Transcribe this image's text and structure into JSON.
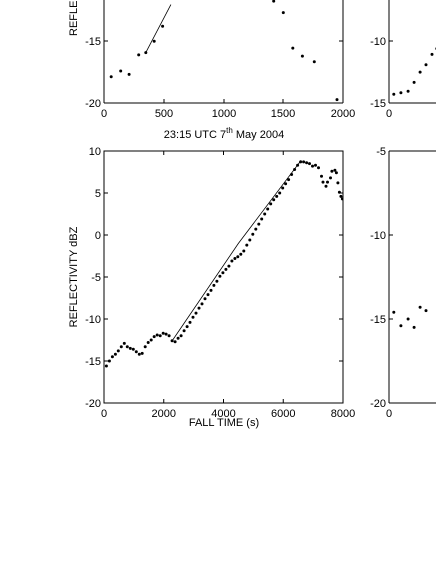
{
  "chart_data": [
    {
      "type": "scatter",
      "panel": "top-left",
      "xlabel": "",
      "ylabel": "REFLECTIVITY dBZ",
      "ylabel_visible": "REFLE",
      "xlim": [
        0,
        2000
      ],
      "ylim": [
        -20,
        -11
      ],
      "xticks": [
        "0",
        "500",
        "1000",
        "1500",
        "2000"
      ],
      "yticks": [
        "-15",
        "-20"
      ],
      "series": [
        {
          "name": "",
          "points": [
            [
              60,
              -17.7
            ],
            [
              140,
              -17.2
            ],
            [
              210,
              -17.5
            ],
            [
              290,
              -15.8
            ],
            [
              350,
              -15.6
            ],
            [
              420,
              -14.6
            ],
            [
              490,
              -13.3
            ]
          ]
        },
        {
          "name": "",
          "points": [
            [
              1420,
              -11.1
            ],
            [
              1500,
              -12.1
            ],
            [
              1580,
              -15.2
            ],
            [
              1660,
              -15.9
            ],
            [
              1760,
              -16.4
            ],
            [
              1950,
              -19.7
            ]
          ]
        }
      ],
      "fit_line": [
        [
          350,
          -15.6
        ],
        [
          560,
          -11.4
        ]
      ]
    },
    {
      "type": "scatter",
      "panel": "top-right",
      "xlim": [
        0,
        2000
      ],
      "ylim": [
        -15,
        -8
      ],
      "xticks": [
        "0"
      ],
      "yticks": [
        "-10",
        "-15"
      ],
      "series": [
        {
          "name": "",
          "points": [
            [
              40,
              -14.4
            ],
            [
              100,
              -14.3
            ],
            [
              160,
              -14.2
            ],
            [
              210,
              -13.6
            ],
            [
              260,
              -12.9
            ],
            [
              310,
              -12.4
            ],
            [
              360,
              -11.7
            ],
            [
              400,
              -11.3
            ]
          ]
        }
      ]
    },
    {
      "type": "scatter",
      "panel": "bottom-left",
      "title": "23:15 UTC 7",
      "title_sup": "th",
      "title_tail": " May 2004",
      "xlabel": "FALL TIME (s)",
      "ylabel": "REFLECTIVITY dBZ",
      "xlim": [
        0,
        8000
      ],
      "ylim": [
        -20,
        10
      ],
      "xticks": [
        "0",
        "2000",
        "4000",
        "6000",
        "8000"
      ],
      "yticks": [
        "10",
        "5",
        "0",
        "-5",
        "-10",
        "-15",
        "-20"
      ],
      "series": [
        {
          "name": "",
          "points": [
            [
              80,
              -15.6
            ],
            [
              180,
              -15.0
            ],
            [
              280,
              -14.5
            ],
            [
              380,
              -14.2
            ],
            [
              480,
              -13.8
            ],
            [
              580,
              -13.3
            ],
            [
              680,
              -12.9
            ],
            [
              780,
              -13.3
            ],
            [
              880,
              -13.5
            ],
            [
              980,
              -13.6
            ],
            [
              1080,
              -13.9
            ],
            [
              1180,
              -14.2
            ],
            [
              1280,
              -14.1
            ],
            [
              1380,
              -13.3
            ],
            [
              1480,
              -12.8
            ],
            [
              1580,
              -12.5
            ],
            [
              1680,
              -12.1
            ],
            [
              1780,
              -11.9
            ],
            [
              1880,
              -12.0
            ],
            [
              1980,
              -11.7
            ],
            [
              2080,
              -11.8
            ],
            [
              2180,
              -12.0
            ],
            [
              2280,
              -12.6
            ],
            [
              2380,
              -12.7
            ],
            [
              2480,
              -12.3
            ],
            [
              2580,
              -12.0
            ],
            [
              2680,
              -11.4
            ],
            [
              2780,
              -10.9
            ],
            [
              2880,
              -10.4
            ],
            [
              2980,
              -9.8
            ],
            [
              3080,
              -9.3
            ],
            [
              3180,
              -8.7
            ],
            [
              3280,
              -8.2
            ],
            [
              3380,
              -7.6
            ],
            [
              3480,
              -7.1
            ],
            [
              3580,
              -6.6
            ],
            [
              3680,
              -6.0
            ],
            [
              3780,
              -5.5
            ],
            [
              3880,
              -4.9
            ],
            [
              3980,
              -4.5
            ],
            [
              4080,
              -4.1
            ],
            [
              4180,
              -3.7
            ],
            [
              4280,
              -3.1
            ],
            [
              4380,
              -2.8
            ],
            [
              4480,
              -2.6
            ],
            [
              4580,
              -2.3
            ],
            [
              4680,
              -1.9
            ],
            [
              4780,
              -1.2
            ],
            [
              4880,
              -0.6
            ],
            [
              4980,
              0.1
            ],
            [
              5080,
              0.7
            ],
            [
              5180,
              1.3
            ],
            [
              5280,
              1.9
            ],
            [
              5380,
              2.5
            ],
            [
              5480,
              3.1
            ],
            [
              5580,
              3.7
            ],
            [
              5680,
              4.2
            ],
            [
              5780,
              4.6
            ],
            [
              5880,
              5.0
            ],
            [
              5980,
              5.6
            ],
            [
              6080,
              6.1
            ],
            [
              6180,
              6.6
            ],
            [
              6280,
              7.2
            ],
            [
              6380,
              7.8
            ],
            [
              6480,
              8.3
            ],
            [
              6580,
              8.7
            ],
            [
              6680,
              8.7
            ],
            [
              6780,
              8.6
            ],
            [
              6880,
              8.5
            ],
            [
              6980,
              8.2
            ],
            [
              7080,
              8.3
            ],
            [
              7180,
              8.0
            ],
            [
              7280,
              7.0
            ],
            [
              7330,
              6.3
            ],
            [
              7430,
              5.8
            ],
            [
              7480,
              6.3
            ],
            [
              7580,
              6.8
            ],
            [
              7630,
              7.6
            ],
            [
              7730,
              7.7
            ],
            [
              7780,
              7.4
            ],
            [
              7830,
              6.2
            ],
            [
              7880,
              5.1
            ],
            [
              7930,
              4.6
            ],
            [
              7980,
              4.3
            ]
          ]
        }
      ],
      "fit_line": [
        [
          2300,
          -12.5
        ],
        [
          4500,
          -1.0
        ],
        [
          6600,
          8.9
        ]
      ]
    },
    {
      "type": "scatter",
      "panel": "bottom-right",
      "xlim": [
        0,
        2000
      ],
      "ylim": [
        -20,
        -5
      ],
      "xticks": [
        "0"
      ],
      "yticks": [
        "-5",
        "-10",
        "-15",
        "-20"
      ],
      "series": [
        {
          "name": "",
          "points": [
            [
              40,
              -14.6
            ],
            [
              100,
              -15.4
            ],
            [
              160,
              -15.0
            ],
            [
              210,
              -15.5
            ],
            [
              260,
              -14.3
            ],
            [
              310,
              -14.5
            ]
          ]
        }
      ]
    }
  ]
}
